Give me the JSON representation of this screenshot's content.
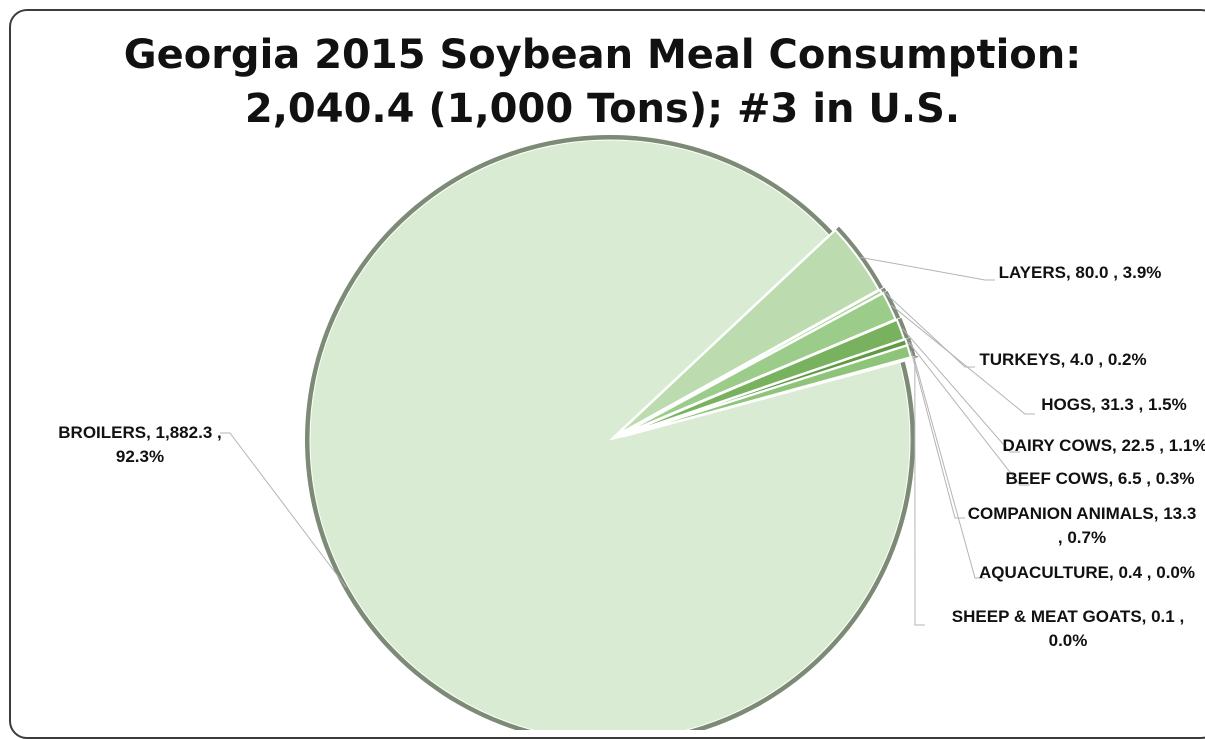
{
  "chart_data": {
    "type": "pie",
    "title": [
      "Georgia 2015 Soybean Meal Consumption:",
      "2,040.4 (1,000 Tons); #3 in U.S."
    ],
    "slices": [
      {
        "name": "Broilers",
        "value": 1882.3,
        "pct": "92.3%",
        "color": "#d9ecd3",
        "label": [
          "BROILERS, 1,882.3 ,",
          "92.3%"
        ]
      },
      {
        "name": "Layers",
        "value": 80.0,
        "pct": "3.9%",
        "color": "#bcdcb0",
        "label": [
          "LAYERS, 80.0 , 3.9%"
        ]
      },
      {
        "name": "Turkeys",
        "value": 4.0,
        "pct": "0.2%",
        "color": "#a8d099",
        "label": [
          "TURKEYS, 4.0 , 0.2%"
        ]
      },
      {
        "name": "Hogs",
        "value": 31.3,
        "pct": "1.5%",
        "color": "#9ccc8a",
        "label": [
          "HOGS, 31.3 , 1.5%"
        ]
      },
      {
        "name": "Dairy Cows",
        "value": 22.5,
        "pct": "1.1%",
        "color": "#78b25e",
        "label": [
          "DAIRY COWS, 22.5 , 1.1%"
        ]
      },
      {
        "name": "Beef Cows",
        "value": 6.5,
        "pct": "0.3%",
        "color": "#5f9a45",
        "label": [
          "BEEF COWS, 6.5 , 0.3%"
        ]
      },
      {
        "name": "Companion Animals",
        "value": 13.3,
        "pct": "0.7%",
        "color": "#8ec47a",
        "label": [
          "COMPANION ANIMALS, 13.3",
          ", 0.7%"
        ]
      },
      {
        "name": "Aquaculture",
        "value": 0.4,
        "pct": "0.0%",
        "color": "#4f8a38",
        "label": [
          "AQUACULTURE, 0.4 , 0.0%"
        ]
      },
      {
        "name": "Sheep & Meat Goats",
        "value": 0.1,
        "pct": "0.0%",
        "color": "#3f7a2c",
        "label": [
          "SHEEP & MEAT GOATS, 0.1 ,",
          "0.0%"
        ]
      }
    ],
    "legend": "none",
    "colors": {
      "rim": "#7c8a76",
      "leader": "#b4b4b4",
      "text": "#111111"
    }
  }
}
